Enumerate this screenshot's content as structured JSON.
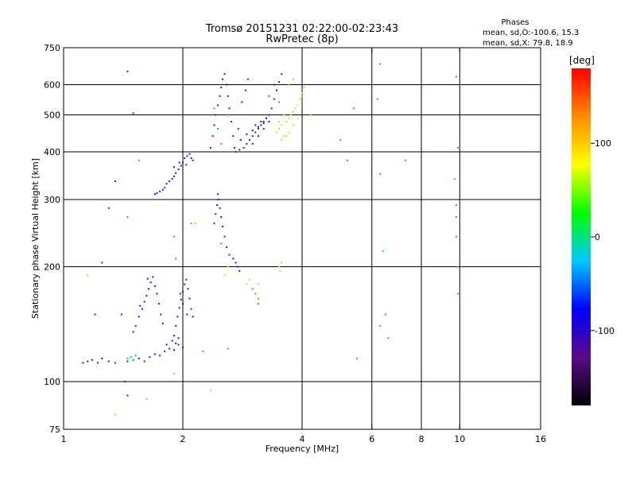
{
  "chart_data": {
    "type": "scatter",
    "title": "Tromsø 20151231 02:22:00-02:23:43",
    "subtitle": "RwPretec (8p)",
    "stats": {
      "heading": "Phases",
      "line1": "mean, sd,O:-100.6, 15.3",
      "line2": "mean, sd,X:  79.8, 18.9"
    },
    "xlabel": "Frequency [MHz]",
    "ylabel": "Stationary phase Virtual Height [km]",
    "x_scale": "log",
    "y_scale": "log",
    "xlim": [
      1,
      16
    ],
    "ylim": [
      75,
      750
    ],
    "x_ticks": [
      1,
      2,
      4,
      6,
      8,
      10,
      16
    ],
    "x_tick_labels": [
      "1",
      "2",
      "4",
      "6",
      "8",
      "10",
      "16"
    ],
    "x_grid": [
      2,
      4,
      6,
      8,
      10
    ],
    "y_ticks": [
      75,
      100,
      200,
      300,
      400,
      500,
      600,
      750
    ],
    "y_tick_labels": [
      "75",
      "100",
      "200",
      "300",
      "400",
      "500",
      "600",
      "750"
    ],
    "y_grid": [
      100,
      200,
      300,
      400,
      500,
      600
    ],
    "grid": true,
    "colorbar": {
      "label": "[deg]",
      "range": [
        -180,
        180
      ],
      "ticks": [
        100,
        0,
        -100
      ],
      "tick_labels": [
        "100",
        "0",
        "-100"
      ],
      "colors": [
        "#000000",
        "#5a0a8c",
        "#0000ff",
        "#00c8ff",
        "#00ff00",
        "#ffff00",
        "#ff8c00",
        "#ff0000"
      ]
    },
    "series": [
      {
        "phase_deg": -110,
        "color": "#1020e0",
        "points": [
          [
            1.12,
            112
          ],
          [
            1.15,
            113
          ],
          [
            1.18,
            114
          ],
          [
            1.22,
            112
          ],
          [
            1.25,
            115
          ],
          [
            1.3,
            113
          ],
          [
            1.35,
            112
          ],
          [
            1.45,
            113
          ],
          [
            1.5,
            114
          ],
          [
            1.55,
            115
          ],
          [
            1.6,
            113
          ],
          [
            1.65,
            116
          ],
          [
            1.7,
            118
          ],
          [
            1.75,
            117
          ],
          [
            1.8,
            120
          ],
          [
            1.85,
            122
          ],
          [
            1.9,
            121
          ],
          [
            1.95,
            125
          ],
          [
            2.0,
            123
          ],
          [
            1.82,
            125
          ],
          [
            1.88,
            128
          ],
          [
            1.92,
            126
          ],
          [
            1.95,
            130
          ],
          [
            1.52,
            140
          ],
          [
            1.55,
            148
          ],
          [
            1.58,
            155
          ],
          [
            1.6,
            162
          ],
          [
            1.62,
            168
          ],
          [
            1.64,
            175
          ],
          [
            1.66,
            182
          ],
          [
            1.68,
            188
          ],
          [
            1.7,
            178
          ],
          [
            1.72,
            170
          ],
          [
            1.74,
            160
          ],
          [
            1.76,
            150
          ],
          [
            1.78,
            142
          ],
          [
            1.5,
            135
          ],
          [
            1.56,
            158
          ],
          [
            1.63,
            186
          ],
          [
            1.9,
            132
          ],
          [
            1.92,
            140
          ],
          [
            1.94,
            148
          ],
          [
            1.96,
            156
          ],
          [
            1.98,
            164
          ],
          [
            2.0,
            172
          ],
          [
            2.02,
            180
          ],
          [
            2.04,
            185
          ],
          [
            2.06,
            175
          ],
          [
            2.08,
            165
          ],
          [
            2.1,
            155
          ],
          [
            2.12,
            148
          ],
          [
            2.0,
            160
          ],
          [
            1.97,
            170
          ],
          [
            2.05,
            150
          ],
          [
            1.7,
            310
          ],
          [
            1.72,
            312
          ],
          [
            1.75,
            315
          ],
          [
            1.78,
            318
          ],
          [
            1.8,
            322
          ],
          [
            1.82,
            330
          ],
          [
            1.85,
            335
          ],
          [
            1.88,
            340
          ],
          [
            1.9,
            345
          ],
          [
            1.92,
            352
          ],
          [
            1.95,
            360
          ],
          [
            1.98,
            368
          ],
          [
            2.0,
            375
          ],
          [
            2.02,
            385
          ],
          [
            2.05,
            390
          ],
          [
            2.08,
            395
          ],
          [
            2.1,
            385
          ],
          [
            2.12,
            380
          ],
          [
            1.9,
            365
          ],
          [
            1.96,
            375
          ],
          [
            2.04,
            370
          ],
          [
            2.35,
            410
          ],
          [
            2.38,
            440
          ],
          [
            2.4,
            470
          ],
          [
            2.42,
            500
          ],
          [
            2.45,
            530
          ],
          [
            2.48,
            560
          ],
          [
            2.5,
            590
          ],
          [
            2.52,
            620
          ],
          [
            2.55,
            640
          ],
          [
            2.58,
            600
          ],
          [
            2.6,
            560
          ],
          [
            2.62,
            520
          ],
          [
            2.65,
            480
          ],
          [
            2.68,
            440
          ],
          [
            2.7,
            410
          ],
          [
            2.72,
            400
          ],
          [
            2.78,
            405
          ],
          [
            2.85,
            410
          ],
          [
            2.9,
            420
          ],
          [
            2.95,
            430
          ],
          [
            3.0,
            440
          ],
          [
            3.05,
            450
          ],
          [
            3.1,
            460
          ],
          [
            3.15,
            470
          ],
          [
            3.2,
            480
          ],
          [
            3.25,
            490
          ],
          [
            3.3,
            500
          ],
          [
            3.35,
            520
          ],
          [
            3.4,
            550
          ],
          [
            3.45,
            580
          ],
          [
            3.5,
            610
          ],
          [
            3.55,
            640
          ],
          [
            3.4,
            600
          ],
          [
            3.3,
            560
          ],
          [
            2.82,
            540
          ],
          [
            2.88,
            580
          ],
          [
            2.92,
            620
          ],
          [
            2.76,
            460
          ],
          [
            2.4,
            260
          ],
          [
            2.42,
            275
          ],
          [
            2.44,
            290
          ],
          [
            2.46,
            300
          ],
          [
            2.48,
            285
          ],
          [
            2.5,
            270
          ],
          [
            2.52,
            255
          ],
          [
            2.45,
            310
          ],
          [
            2.55,
            240
          ],
          [
            2.58,
            225
          ],
          [
            2.62,
            215
          ],
          [
            2.68,
            210
          ],
          [
            2.72,
            205
          ],
          [
            2.75,
            200
          ],
          [
            2.78,
            195
          ],
          [
            1.45,
            650
          ],
          [
            1.5,
            505
          ],
          [
            1.35,
            335
          ],
          [
            1.3,
            285
          ],
          [
            1.25,
            205
          ],
          [
            1.2,
            150
          ],
          [
            1.4,
            150
          ],
          [
            1.43,
            100
          ],
          [
            1.45,
            92
          ]
        ]
      },
      {
        "phase_deg": -150,
        "color": "#4a0a8a",
        "points": [
          [
            2.8,
            430
          ],
          [
            2.9,
            445
          ],
          [
            3.0,
            455
          ],
          [
            3.05,
            470
          ],
          [
            3.1,
            465
          ],
          [
            3.15,
            480
          ],
          [
            3.2,
            475
          ],
          [
            3.25,
            490
          ],
          [
            3.0,
            420
          ],
          [
            3.1,
            440
          ],
          [
            3.2,
            460
          ],
          [
            3.3,
            480
          ]
        ]
      },
      {
        "phase_deg": -60,
        "color": "#00a8ff",
        "points": [
          [
            2.4,
            520
          ],
          [
            2.45,
            460
          ],
          [
            2.5,
            420
          ],
          [
            2.6,
            500
          ],
          [
            3.3,
            560
          ],
          [
            3.5,
            540
          ],
          [
            5.4,
            520
          ],
          [
            6.3,
            680
          ],
          [
            6.4,
            220
          ],
          [
            6.6,
            130
          ],
          [
            7.3,
            380
          ],
          [
            9.7,
            340
          ],
          [
            2.5,
            230
          ],
          [
            1.55,
            380
          ]
        ]
      },
      {
        "phase_deg": 0,
        "color": "#00e000",
        "points": [
          [
            1.45,
            115
          ],
          [
            1.48,
            116
          ],
          [
            1.5,
            114
          ],
          [
            1.52,
            117
          ],
          [
            2.25,
            120
          ],
          [
            2.6,
            122
          ],
          [
            1.9,
            240
          ],
          [
            1.92,
            210
          ],
          [
            2.1,
            260
          ],
          [
            3.1,
            165
          ],
          [
            3.0,
            175
          ],
          [
            3.05,
            170
          ],
          [
            3.1,
            160
          ]
        ]
      },
      {
        "phase_deg": 80,
        "color": "#c8e81a",
        "points": [
          [
            3.45,
            450
          ],
          [
            3.5,
            460
          ],
          [
            3.55,
            470
          ],
          [
            3.6,
            440
          ],
          [
            3.65,
            480
          ],
          [
            3.7,
            490
          ],
          [
            3.75,
            500
          ],
          [
            3.8,
            510
          ],
          [
            3.85,
            520
          ],
          [
            3.9,
            530
          ],
          [
            3.95,
            550
          ],
          [
            4.0,
            560
          ],
          [
            3.5,
            480
          ],
          [
            3.6,
            500
          ],
          [
            3.7,
            450
          ],
          [
            3.8,
            470
          ],
          [
            3.9,
            490
          ],
          [
            4.0,
            570
          ],
          [
            3.55,
            430
          ],
          [
            3.65,
            440
          ],
          [
            3.5,
            200
          ],
          [
            3.52,
            195
          ],
          [
            3.55,
            205
          ],
          [
            2.9,
            180
          ],
          [
            2.95,
            185
          ],
          [
            2.6,
            200
          ],
          [
            2.55,
            190
          ],
          [
            3.1,
            180
          ],
          [
            4.05,
            590
          ]
        ]
      },
      {
        "phase_deg": 120,
        "color": "#ffb000",
        "points": [
          [
            3.7,
            600
          ],
          [
            3.8,
            620
          ],
          [
            4.2,
            500
          ],
          [
            1.15,
            190
          ],
          [
            2.15,
            260
          ],
          [
            1.62,
            90
          ],
          [
            1.35,
            82
          ],
          [
            1.9,
            105
          ],
          [
            2.35,
            95
          ]
        ]
      },
      {
        "phase_deg": 150,
        "color": "#ff5a00",
        "points": [
          [
            5.2,
            380
          ],
          [
            5.5,
            115
          ],
          [
            6.2,
            550
          ],
          [
            6.3,
            350
          ],
          [
            6.5,
            150
          ],
          [
            9.8,
            630
          ],
          [
            9.8,
            290
          ],
          [
            9.8,
            240
          ],
          [
            9.8,
            270
          ],
          [
            9.9,
            410
          ],
          [
            9.9,
            200
          ],
          [
            9.9,
            170
          ],
          [
            1.25,
            300
          ],
          [
            1.45,
            270
          ],
          [
            5.0,
            430
          ],
          [
            6.3,
            140
          ]
        ]
      }
    ]
  }
}
